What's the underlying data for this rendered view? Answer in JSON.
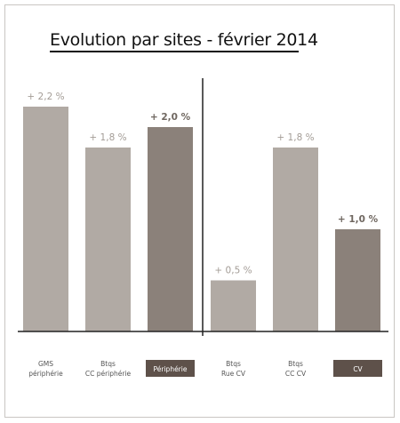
{
  "chart_data": {
    "type": "bar",
    "title": "Evolution par sites - février 2014",
    "xlabel": "",
    "ylabel": "",
    "ylim": [
      0,
      2.4
    ],
    "grid": false,
    "legend": "none",
    "categories": [
      {
        "label": [
          "GMS",
          "périphérie"
        ],
        "highlight": false
      },
      {
        "label": [
          "Btqs",
          "CC périphérie"
        ],
        "highlight": false
      },
      {
        "label": [
          "Périphérie"
        ],
        "highlight": true
      },
      {
        "label": [
          "Btqs",
          "Rue CV"
        ],
        "highlight": false
      },
      {
        "label": [
          "Btqs",
          "CC CV"
        ],
        "highlight": false
      },
      {
        "label": [
          "CV"
        ],
        "highlight": true
      }
    ],
    "values": [
      2.2,
      1.8,
      2.0,
      0.5,
      1.8,
      1.0
    ],
    "value_labels": [
      "+ 2,2 %",
      "+ 1,8 %",
      "+ 2,0 %",
      "+ 0,5 %",
      "+ 1,8 %",
      "+ 1,0 %"
    ],
    "groups": [
      "Périphérie",
      "CV"
    ]
  },
  "colors": {
    "bar_light": "#b1aaa4",
    "bar_dark": "#8b817a",
    "value_light": "#a39c96",
    "value_dark": "#6f6760",
    "label_box": "#5e514a",
    "label_box_text": "#ffffff",
    "axis": "#222222"
  }
}
